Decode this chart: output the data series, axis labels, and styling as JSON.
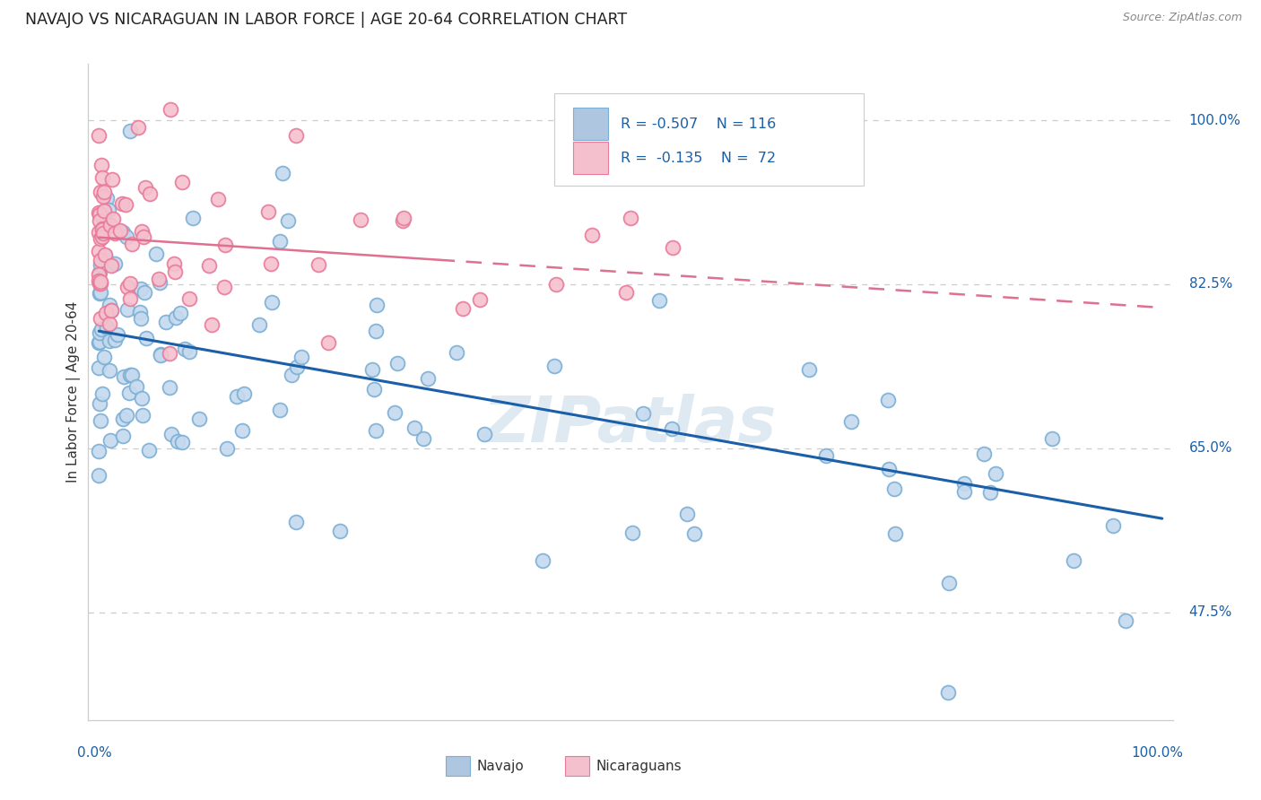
{
  "title": "NAVAJO VS NICARAGUAN IN LABOR FORCE | AGE 20-64 CORRELATION CHART",
  "source": "Source: ZipAtlas.com",
  "ylabel": "In Labor Force | Age 20-64",
  "ytick_vals": [
    0.475,
    0.65,
    0.825,
    1.0
  ],
  "ytick_labels": [
    "47.5%",
    "65.0%",
    "82.5%",
    "100.0%"
  ],
  "watermark": "ZIPatlas",
  "navajo_edge_color": "#7bafd4",
  "navajo_fill_color": "#c5d9ee",
  "nicaraguan_edge_color": "#e87a9a",
  "nicaraguan_fill_color": "#f5c0cd",
  "navajo_line_color": "#1a5fa8",
  "nicaraguan_line_color": "#e07090",
  "legend_navajo_fill": "#aec6e0",
  "legend_navajo_edge": "#7bafd4",
  "legend_nicaraguan_fill": "#f5c0cd",
  "legend_nicaraguan_edge": "#e87a9a",
  "title_color": "#222222",
  "source_color": "#888888",
  "axis_label_color": "#1a5fa8",
  "ylabel_color": "#333333",
  "grid_color": "#cccccc",
  "background_color": "#ffffff"
}
